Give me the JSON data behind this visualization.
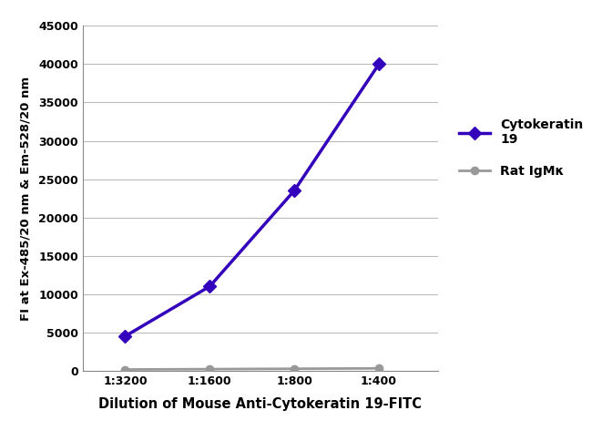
{
  "x_labels": [
    "1:3200",
    "1:1600",
    "1:800",
    "1:400"
  ],
  "x_positions": [
    1,
    2,
    3,
    4
  ],
  "cytokeratin_values": [
    4500,
    11000,
    23500,
    40000
  ],
  "rat_igmk_values": [
    150,
    200,
    250,
    300
  ],
  "cytokeratin_color": "#3300bb",
  "rat_igmk_color": "#999999",
  "cytokeratin_label": "Cytokeratin\n19",
  "rat_igmk_label": "Rat IgMκ",
  "ylabel": "FI at Ex-485/20 nm & Em-528/20 nm",
  "xlabel": "Dilution of Mouse Anti-Cytokeratin 19-FITC",
  "ylim": [
    0,
    45000
  ],
  "yticks": [
    0,
    5000,
    10000,
    15000,
    20000,
    25000,
    30000,
    35000,
    40000,
    45000
  ],
  "background_color": "#ffffff",
  "grid_color": "#bbbbbb",
  "ylabel_fontsize": 9.5,
  "xlabel_fontsize": 10.5,
  "tick_fontsize": 9,
  "legend_fontsize": 10
}
